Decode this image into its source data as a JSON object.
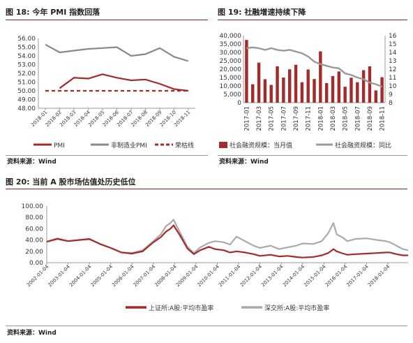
{
  "panels": {
    "left_title": "图 18: 今年 PMI 指数回落",
    "right_title": "图 19: 社融增速持续下降",
    "bottom_title": "图 20: 当前 A 股市场估值处历史低位",
    "left_source": "资料来源：Wind",
    "right_source": "资料来源：Wind",
    "bottom_source": "资料来源：Wind"
  },
  "colors": {
    "accent": "#a31f1f",
    "red_series": "#a52a2a",
    "gray_series": "#999999",
    "dark_gray": "#888888"
  },
  "chart_data": [
    {
      "id": "pmi",
      "type": "line",
      "title": "今年 PMI 指数回落",
      "x": [
        "2018-01",
        "2018-02",
        "2018-03",
        "2018-04",
        "2018-05",
        "2018-06",
        "2018-07",
        "2018-08",
        "2018-09",
        "2018-10",
        "2018-11"
      ],
      "ylim": [
        48.0,
        56.0
      ],
      "yticks": [
        "48.00",
        "49.00",
        "50.00",
        "51.00",
        "52.00",
        "53.00",
        "54.00",
        "55.00",
        "56.00"
      ],
      "series": [
        {
          "name": "PMI",
          "color": "#a52a2a",
          "style": "solid",
          "values": [
            null,
            50.3,
            51.5,
            51.4,
            51.9,
            51.5,
            51.2,
            51.3,
            50.8,
            50.2,
            50.0
          ]
        },
        {
          "name": "非制造业PMI",
          "color": "#888888",
          "style": "solid",
          "values": [
            55.3,
            54.4,
            54.6,
            54.8,
            54.9,
            55.0,
            54.0,
            54.2,
            54.9,
            53.9,
            53.4
          ]
        },
        {
          "name": "荣枯线",
          "color": "#a52a2a",
          "style": "dashed",
          "values": [
            50,
            50,
            50,
            50,
            50,
            50,
            50,
            50,
            50,
            50,
            50
          ]
        }
      ],
      "legend": [
        "PMI",
        "非制造业PMI",
        "荣枯线"
      ],
      "legend_position": "bottom"
    },
    {
      "id": "tsf",
      "type": "bar",
      "title": "社融增速持续下降",
      "x": [
        "2017-01",
        "2017-02",
        "2017-03",
        "2017-04",
        "2017-05",
        "2017-06",
        "2017-07",
        "2017-08",
        "2017-09",
        "2017-10",
        "2017-11",
        "2017-12",
        "2018-01",
        "2018-02",
        "2018-03",
        "2018-04",
        "2018-05",
        "2018-06",
        "2018-07",
        "2018-08",
        "2018-09",
        "2018-10",
        "2018-11"
      ],
      "xtick_labels": [
        "2017-01",
        "2017-03",
        "2017-05",
        "2017-07",
        "2017-09",
        "2017-11",
        "2018-01",
        "2018-03",
        "2018-05",
        "2018-07",
        "2018-09",
        "2018-11"
      ],
      "ylim_left": [
        0,
        40000
      ],
      "ylim_right": [
        8,
        16
      ],
      "yticks_left": [
        "0",
        "5,000",
        "10,000",
        "15,000",
        "20,000",
        "25,000",
        "30,000",
        "35,000",
        "40,000"
      ],
      "yticks_right": [
        "8",
        "9",
        "10",
        "11",
        "12",
        "13",
        "14",
        "15",
        "16"
      ],
      "series": [
        {
          "name": "社会融资规模：当月值",
          "axis": "left",
          "type": "bar",
          "color": "#a52a2a",
          "values": [
            37400,
            11000,
            23900,
            14000,
            10600,
            21700,
            15000,
            19900,
            22600,
            12200,
            19800,
            14100,
            30600,
            11700,
            15900,
            18600,
            9500,
            14900,
            12200,
            19400,
            21700,
            7300,
            15200
          ]
        },
        {
          "name": "社会融资规模：同比",
          "axis": "right",
          "type": "line",
          "color": "#999999",
          "values": [
            14.5,
            14.6,
            14.5,
            14.3,
            14.5,
            14.3,
            14.2,
            14.3,
            14.1,
            13.9,
            13.5,
            12.9,
            12.6,
            12.4,
            12.2,
            12.1,
            11.5,
            11.3,
            11.0,
            10.8,
            10.4,
            10.2,
            9.9
          ]
        }
      ],
      "legend": [
        "社会融资规模：当月值",
        "社会融资规模：同比"
      ],
      "legend_position": "bottom"
    },
    {
      "id": "pe",
      "type": "line",
      "title": "当前 A 股市场估值处历史低位",
      "x_labels": [
        "2002-01-04",
        "2003-01-04",
        "2004-01-04",
        "2005-01-04",
        "2006-01-04",
        "2007-01-04",
        "2008-01-04",
        "2009-01-04",
        "2010-01-04",
        "2011-01-04",
        "2012-01-04",
        "2013-01-04",
        "2014-01-04",
        "2015-01-04",
        "2016-01-04",
        "2017-01-04",
        "2018-01-04"
      ],
      "x_start": 2002.0,
      "x_end": 2018.95,
      "ylim": [
        0,
        100
      ],
      "yticks": [
        "0.00",
        "20.00",
        "40.00",
        "60.00",
        "80.00",
        "100.00"
      ],
      "series": [
        {
          "name": "上证所:A股:平均市盈率",
          "color": "#a52a2a",
          "points": [
            [
              2002.0,
              37
            ],
            [
              2002.5,
              42
            ],
            [
              2003.0,
              38
            ],
            [
              2003.5,
              40
            ],
            [
              2004.0,
              42
            ],
            [
              2004.5,
              33
            ],
            [
              2005.0,
              26
            ],
            [
              2005.5,
              18
            ],
            [
              2006.0,
              16
            ],
            [
              2006.5,
              20
            ],
            [
              2007.0,
              36
            ],
            [
              2007.35,
              45
            ],
            [
              2007.6,
              55
            ],
            [
              2007.8,
              60
            ],
            [
              2007.95,
              66
            ],
            [
              2008.05,
              60
            ],
            [
              2008.3,
              45
            ],
            [
              2008.6,
              25
            ],
            [
              2008.9,
              15
            ],
            [
              2009.2,
              22
            ],
            [
              2009.6,
              28
            ],
            [
              2009.9,
              24
            ],
            [
              2010.3,
              22
            ],
            [
              2010.6,
              18
            ],
            [
              2010.9,
              20
            ],
            [
              2011.3,
              18
            ],
            [
              2011.7,
              15
            ],
            [
              2012.0,
              12
            ],
            [
              2012.5,
              14
            ],
            [
              2012.9,
              11
            ],
            [
              2013.3,
              12
            ],
            [
              2013.7,
              10
            ],
            [
              2014.0,
              9
            ],
            [
              2014.5,
              10
            ],
            [
              2014.9,
              13
            ],
            [
              2015.2,
              17
            ],
            [
              2015.45,
              24
            ],
            [
              2015.6,
              20
            ],
            [
              2015.9,
              16
            ],
            [
              2016.1,
              14
            ],
            [
              2016.5,
              15
            ],
            [
              2017.0,
              16
            ],
            [
              2017.5,
              17
            ],
            [
              2017.9,
              18
            ],
            [
              2018.1,
              18
            ],
            [
              2018.4,
              15
            ],
            [
              2018.7,
              13
            ],
            [
              2018.95,
              13
            ]
          ]
        },
        {
          "name": "深交所:A股:平均市盈率",
          "color": "#aaaaaa",
          "points": [
            [
              2002.0,
              37
            ],
            [
              2002.5,
              43
            ],
            [
              2003.0,
              38
            ],
            [
              2003.5,
              40
            ],
            [
              2004.0,
              41
            ],
            [
              2004.5,
              33
            ],
            [
              2005.0,
              26
            ],
            [
              2005.5,
              18
            ],
            [
              2006.0,
              17
            ],
            [
              2006.5,
              22
            ],
            [
              2007.0,
              38
            ],
            [
              2007.35,
              50
            ],
            [
              2007.6,
              65
            ],
            [
              2007.8,
              70
            ],
            [
              2007.95,
              76
            ],
            [
              2008.05,
              68
            ],
            [
              2008.3,
              50
            ],
            [
              2008.6,
              28
            ],
            [
              2008.9,
              17
            ],
            [
              2009.2,
              27
            ],
            [
              2009.6,
              35
            ],
            [
              2009.9,
              38
            ],
            [
              2010.3,
              36
            ],
            [
              2010.6,
              32
            ],
            [
              2010.9,
              46
            ],
            [
              2011.3,
              38
            ],
            [
              2011.7,
              30
            ],
            [
              2012.0,
              26
            ],
            [
              2012.5,
              30
            ],
            [
              2012.9,
              24
            ],
            [
              2013.3,
              27
            ],
            [
              2013.7,
              30
            ],
            [
              2014.0,
              34
            ],
            [
              2014.5,
              33
            ],
            [
              2014.9,
              38
            ],
            [
              2015.2,
              52
            ],
            [
              2015.45,
              70
            ],
            [
              2015.6,
              50
            ],
            [
              2015.9,
              44
            ],
            [
              2016.1,
              38
            ],
            [
              2016.5,
              42
            ],
            [
              2017.0,
              43
            ],
            [
              2017.5,
              40
            ],
            [
              2017.9,
              38
            ],
            [
              2018.1,
              36
            ],
            [
              2018.4,
              30
            ],
            [
              2018.7,
              24
            ],
            [
              2018.95,
              22
            ]
          ]
        }
      ],
      "legend": [
        "上证所:A股:平均市盈率",
        "深交所:A股:平均市盈率"
      ],
      "legend_position": "bottom"
    }
  ]
}
